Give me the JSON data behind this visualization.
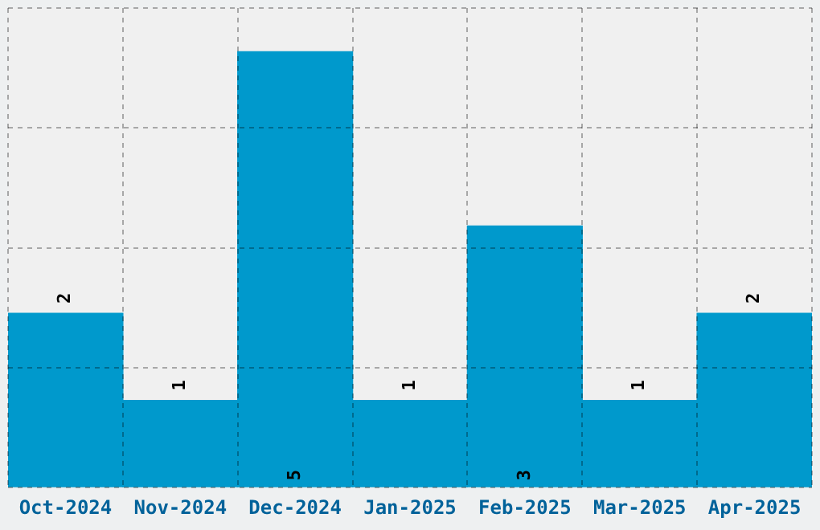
{
  "chart_data": {
    "type": "bar",
    "categories": [
      "Oct-2024",
      "Nov-2024",
      "Dec-2024",
      "Jan-2025",
      "Feb-2025",
      "Mar-2025",
      "Apr-2025"
    ],
    "values": [
      2,
      1,
      5,
      1,
      3,
      1,
      2
    ],
    "color": "#0099cc",
    "ylim": [
      0,
      5.5
    ],
    "yticks": [
      0,
      {
        "value": 1.375,
        "label": null
      },
      {
        "value": 2.75,
        "label": null
      },
      {
        "value": 4.125,
        "label": null
      },
      {
        "value": 5.5,
        "label": null
      }
    ],
    "tick_labels": "x",
    "grid": true,
    "data_labels": true,
    "legend": false
  }
}
